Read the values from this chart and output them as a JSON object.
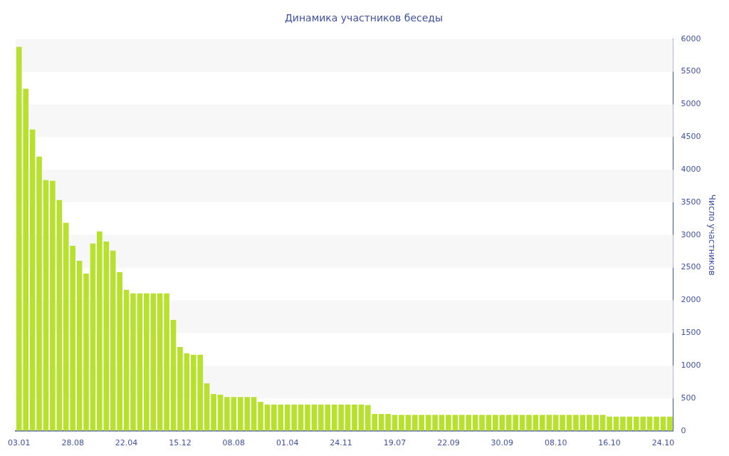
{
  "chart_data": {
    "type": "bar",
    "title": "Динамика участников беседы",
    "ylabel": "Число участников",
    "categories": [
      "03.01",
      null,
      null,
      null,
      null,
      null,
      null,
      null,
      "28.08",
      null,
      null,
      null,
      null,
      null,
      null,
      null,
      "22.04",
      null,
      null,
      null,
      null,
      null,
      null,
      null,
      "15.12",
      null,
      null,
      null,
      null,
      null,
      null,
      null,
      "08.08",
      null,
      null,
      null,
      null,
      null,
      null,
      null,
      "01.04",
      null,
      null,
      null,
      null,
      null,
      null,
      null,
      "24.11",
      null,
      null,
      null,
      null,
      null,
      null,
      null,
      "19.07",
      null,
      null,
      null,
      null,
      null,
      null,
      null,
      "22.09",
      null,
      null,
      null,
      null,
      null,
      null,
      null,
      "30.09",
      null,
      null,
      null,
      null,
      null,
      null,
      null,
      "08.10",
      null,
      null,
      null,
      null,
      null,
      null,
      null,
      "16.10",
      null,
      null,
      null,
      null,
      null,
      null,
      null,
      "24.10",
      null
    ],
    "values": [
      5880,
      5240,
      4615,
      4200,
      3840,
      3830,
      3535,
      3185,
      2835,
      2605,
      2410,
      2870,
      3055,
      2900,
      2760,
      2430,
      2160,
      2105,
      2105,
      2105,
      2105,
      2105,
      2105,
      1700,
      1285,
      1190,
      1165,
      1165,
      730,
      565,
      555,
      520,
      520,
      520,
      520,
      520,
      445,
      405,
      405,
      405,
      405,
      405,
      405,
      405,
      405,
      405,
      405,
      405,
      405,
      405,
      405,
      405,
      395,
      260,
      260,
      260,
      245,
      245,
      245,
      245,
      245,
      245,
      245,
      245,
      245,
      245,
      245,
      245,
      245,
      245,
      245,
      245,
      245,
      245,
      245,
      245,
      245,
      245,
      245,
      245,
      245,
      245,
      245,
      245,
      245,
      245,
      245,
      245,
      220,
      220,
      220,
      220,
      220,
      220,
      220,
      220,
      220,
      220
    ],
    "color": "#b8e02e",
    "ylim": [
      0,
      6000
    ],
    "yticks": [
      0,
      500,
      1000,
      1500,
      2000,
      2500,
      3000,
      3500,
      4000,
      4500,
      5000,
      5500,
      6000
    ],
    "legend": false,
    "bands": [
      {
        "axis": "y",
        "from": 500,
        "to": 1000,
        "color": "#f7f7f7"
      },
      {
        "axis": "y",
        "from": 1500,
        "to": 2000,
        "color": "#f7f7f7"
      },
      {
        "axis": "y",
        "from": 2500,
        "to": 3000,
        "color": "#f7f7f7"
      },
      {
        "axis": "y",
        "from": 3500,
        "to": 4000,
        "color": "#f7f7f7"
      },
      {
        "axis": "y",
        "from": 4500,
        "to": 5000,
        "color": "#f7f7f7"
      },
      {
        "axis": "y",
        "from": 5500,
        "to": 6000,
        "color": "#f7f7f7"
      }
    ]
  }
}
